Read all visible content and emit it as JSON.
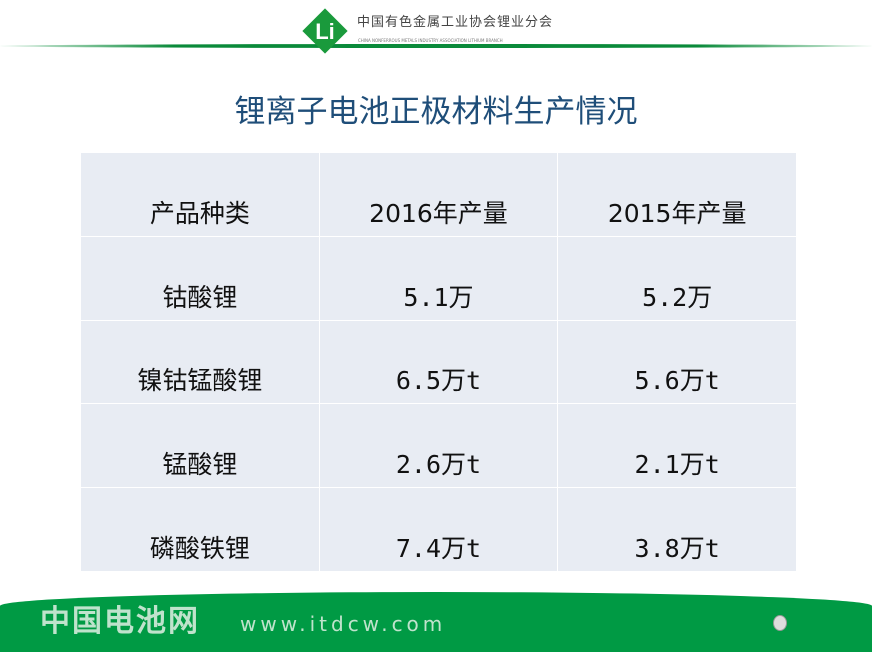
{
  "header": {
    "org_name": "中国有色金属工业协会锂业分会",
    "org_name_en": "CHINA NONFERROUS METALS INDUSTRY ASSOCIATION LITHIUM BRANCH",
    "logo_text": "Li"
  },
  "title": "锂离子电池正极材料生产情况",
  "table": {
    "headers": [
      "产品种类",
      "2016年产量",
      "2015年产量"
    ],
    "rows": [
      [
        "钴酸锂",
        "5.1万",
        "5.2万"
      ],
      [
        "镍钴锰酸锂",
        "6.5万t",
        "5.6万t"
      ],
      [
        "锰酸锂",
        "2.6万t",
        "2.1万t"
      ],
      [
        "磷酸铁锂",
        "7.4万t",
        "3.8万t"
      ]
    ]
  },
  "watermark": {
    "name": "中国电池网",
    "url": "www.itdcw.com"
  },
  "colors": {
    "brand_green": "#009a44",
    "title_blue": "#1f4e79",
    "table_bg": "#e8ecf3"
  }
}
